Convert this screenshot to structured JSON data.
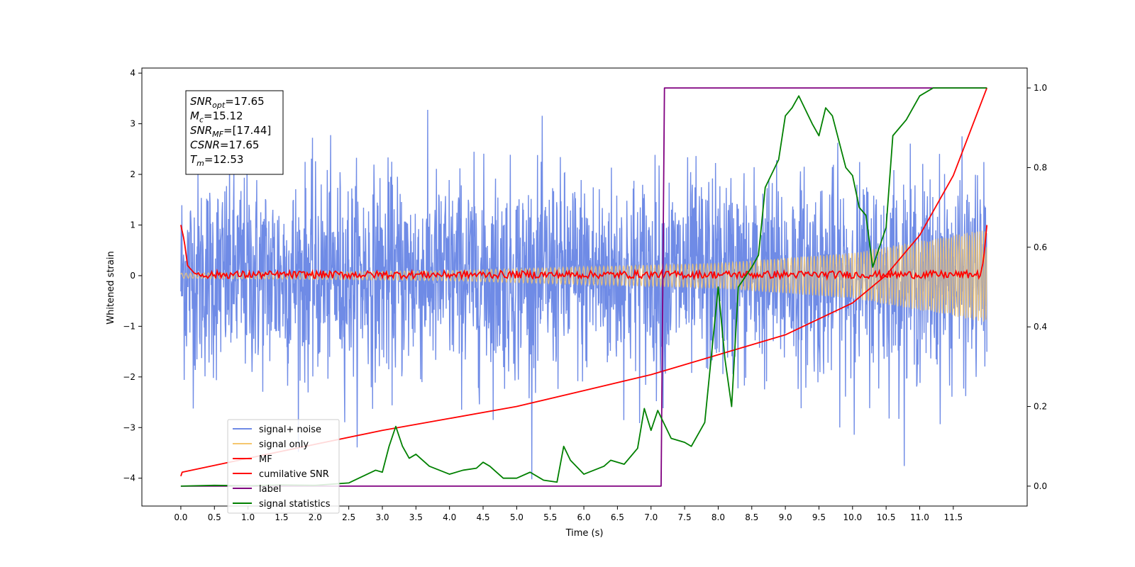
{
  "chart_data": {
    "type": "line",
    "xlabel": "Time (s)",
    "ylabel": "Whitened strain",
    "xlim": [
      -0.58,
      12.6
    ],
    "ylim": [
      -4.55,
      4.1
    ],
    "y2lim": [
      -0.05,
      1.05
    ],
    "xticks": [
      0.0,
      0.5,
      1.0,
      1.5,
      2.0,
      2.5,
      3.0,
      3.5,
      4.0,
      4.5,
      5.0,
      5.5,
      6.0,
      6.5,
      7.0,
      7.5,
      8.0,
      8.5,
      9.0,
      9.5,
      10.0,
      10.5,
      11.0,
      11.5
    ],
    "xtick_labels": [
      "0.0",
      "0.5",
      "1.0",
      "1.5",
      "2.0",
      "2.5",
      "3.0",
      "3.5",
      "4.0",
      "4.5",
      "5.0",
      "5.5",
      "6.0",
      "6.5",
      "7.0",
      "7.5",
      "8.0",
      "8.5",
      "9.0",
      "9.5",
      "10.0",
      "10.5",
      "11.0",
      "11.5"
    ],
    "yticks": [
      -4,
      -3,
      -2,
      -1,
      0,
      1,
      2,
      3,
      4
    ],
    "ytick_labels": [
      "−4",
      "−3",
      "−2",
      "−1",
      "0",
      "1",
      "2",
      "3",
      "4"
    ],
    "y2ticks": [
      0.0,
      0.2,
      0.4,
      0.6,
      0.8,
      1.0
    ],
    "y2tick_labels": [
      "0.0",
      "0.2",
      "0.4",
      "0.6",
      "0.8",
      "1.0"
    ],
    "grid": false,
    "legend_position": "lower-left",
    "series": [
      {
        "name": "signal+ noise",
        "color": "#6f8be6",
        "axis": "left",
        "kind": "noisy",
        "x_range": [
          0.0,
          12.0
        ],
        "amplitude_std": 1.0,
        "y_range": [
          -4.15,
          3.72
        ]
      },
      {
        "name": "signal only",
        "color": "#f5c76e",
        "axis": "left",
        "kind": "chirp",
        "x_range": [
          0.0,
          12.0
        ],
        "envelope": [
          [
            0.0,
            0.05
          ],
          [
            4.0,
            0.1
          ],
          [
            8.0,
            0.25
          ],
          [
            10.0,
            0.45
          ],
          [
            12.0,
            0.92
          ]
        ]
      },
      {
        "name": "MF",
        "color": "#ff0000",
        "axis": "left",
        "kind": "matched-filter",
        "x_range": [
          0.0,
          12.0
        ],
        "points": [
          [
            0.0,
            1.0
          ],
          [
            0.05,
            0.7
          ],
          [
            0.1,
            0.2
          ],
          [
            0.2,
            0.05
          ],
          [
            0.3,
            0.0
          ],
          [
            0.5,
            0.1
          ],
          [
            11.9,
            0.0
          ],
          [
            11.95,
            0.3
          ],
          [
            12.0,
            1.0
          ]
        ]
      },
      {
        "name": "cumilative SNR",
        "color": "#ff0000",
        "axis": "right",
        "points": [
          [
            0.0,
            0.025
          ],
          [
            0.02,
            0.035
          ],
          [
            1.0,
            0.07
          ],
          [
            2.0,
            0.105
          ],
          [
            3.0,
            0.14
          ],
          [
            4.0,
            0.17
          ],
          [
            5.0,
            0.2
          ],
          [
            6.0,
            0.24
          ],
          [
            7.0,
            0.28
          ],
          [
            8.0,
            0.33
          ],
          [
            9.0,
            0.38
          ],
          [
            10.0,
            0.46
          ],
          [
            10.5,
            0.53
          ],
          [
            11.0,
            0.63
          ],
          [
            11.5,
            0.78
          ],
          [
            12.0,
            1.0
          ]
        ]
      },
      {
        "name": "label",
        "color": "#800080",
        "axis": "right",
        "points": [
          [
            0.0,
            0.0
          ],
          [
            7.15,
            0.0
          ],
          [
            7.2,
            1.0
          ],
          [
            12.0,
            1.0
          ]
        ]
      },
      {
        "name": "signal statistics",
        "color": "#008000",
        "axis": "right",
        "points": [
          [
            0.0,
            0.0
          ],
          [
            0.5,
            0.002
          ],
          [
            1.0,
            0.001
          ],
          [
            1.5,
            0.003
          ],
          [
            2.0,
            0.002
          ],
          [
            2.5,
            0.008
          ],
          [
            2.9,
            0.04
          ],
          [
            3.0,
            0.035
          ],
          [
            3.1,
            0.1
          ],
          [
            3.2,
            0.15
          ],
          [
            3.3,
            0.1
          ],
          [
            3.4,
            0.07
          ],
          [
            3.5,
            0.08
          ],
          [
            3.7,
            0.05
          ],
          [
            4.0,
            0.03
          ],
          [
            4.2,
            0.04
          ],
          [
            4.4,
            0.045
          ],
          [
            4.5,
            0.06
          ],
          [
            4.6,
            0.05
          ],
          [
            4.8,
            0.02
          ],
          [
            5.0,
            0.02
          ],
          [
            5.2,
            0.035
          ],
          [
            5.4,
            0.015
          ],
          [
            5.6,
            0.01
          ],
          [
            5.7,
            0.1
          ],
          [
            5.8,
            0.065
          ],
          [
            6.0,
            0.03
          ],
          [
            6.3,
            0.05
          ],
          [
            6.4,
            0.065
          ],
          [
            6.6,
            0.055
          ],
          [
            6.8,
            0.095
          ],
          [
            6.9,
            0.195
          ],
          [
            7.0,
            0.14
          ],
          [
            7.1,
            0.19
          ],
          [
            7.3,
            0.12
          ],
          [
            7.5,
            0.11
          ],
          [
            7.6,
            0.1
          ],
          [
            7.8,
            0.16
          ],
          [
            8.0,
            0.5
          ],
          [
            8.1,
            0.32
          ],
          [
            8.2,
            0.2
          ],
          [
            8.3,
            0.5
          ],
          [
            8.5,
            0.55
          ],
          [
            8.6,
            0.58
          ],
          [
            8.7,
            0.75
          ],
          [
            8.9,
            0.82
          ],
          [
            9.0,
            0.93
          ],
          [
            9.1,
            0.95
          ],
          [
            9.2,
            0.98
          ],
          [
            9.4,
            0.91
          ],
          [
            9.5,
            0.88
          ],
          [
            9.6,
            0.95
          ],
          [
            9.7,
            0.93
          ],
          [
            9.9,
            0.8
          ],
          [
            10.0,
            0.78
          ],
          [
            10.1,
            0.7
          ],
          [
            10.2,
            0.68
          ],
          [
            10.3,
            0.55
          ],
          [
            10.5,
            0.65
          ],
          [
            10.6,
            0.88
          ],
          [
            10.8,
            0.92
          ],
          [
            11.0,
            0.98
          ],
          [
            11.2,
            1.0
          ],
          [
            11.5,
            1.0
          ],
          [
            12.0,
            1.0
          ]
        ]
      }
    ],
    "annotations": [
      {
        "base": "SNR",
        "sub": "opt",
        "value": "=17.65"
      },
      {
        "base": "M",
        "sub": "c",
        "value": "=15.12"
      },
      {
        "base": "SNR",
        "sub": "MF",
        "value": "=[17.44]"
      },
      {
        "base": "CSNR",
        "sub": "",
        "value": "=17.65"
      },
      {
        "base": "T",
        "sub": "m",
        "value": "=12.53"
      }
    ]
  }
}
